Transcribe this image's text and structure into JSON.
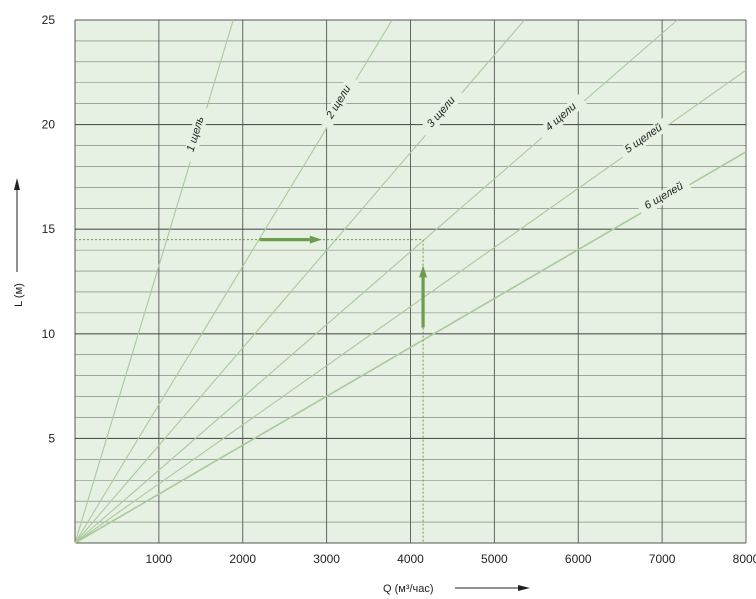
{
  "chart_data": {
    "type": "line",
    "xlabel": "Q (м³/час)",
    "ylabel": "L (м)",
    "xlim": [
      0,
      8000
    ],
    "ylim": [
      0,
      25
    ],
    "x_ticks": [
      1000,
      2000,
      3000,
      4000,
      5000,
      6000,
      7000,
      8000
    ],
    "x_tick_labels": [
      "1000",
      "2000",
      "3000",
      "4000",
      "5000",
      "6000",
      "7000",
      "8000"
    ],
    "y_ticks": [
      5,
      10,
      15,
      20,
      25
    ],
    "y_tick_labels": [
      "5",
      "10",
      "15",
      "20",
      "25"
    ],
    "grid": true,
    "series": [
      {
        "name": "1 щель",
        "x": [
          0,
          1887
        ],
        "y": [
          0,
          25
        ]
      },
      {
        "name": "2 щели",
        "x": [
          0,
          3781
        ],
        "y": [
          0,
          25
        ]
      },
      {
        "name": "3 щели",
        "x": [
          0,
          5359
        ],
        "y": [
          0,
          25
        ]
      },
      {
        "name": "4 щели",
        "x": [
          0,
          7182
        ],
        "y": [
          0,
          25
        ]
      },
      {
        "name": "5 щелей",
        "x": [
          0,
          8000
        ],
        "y": [
          0,
          22.6
        ]
      },
      {
        "name": "6 щелей",
        "x": [
          0,
          8000
        ],
        "y": [
          0,
          18.7
        ]
      }
    ],
    "annotations": {
      "example_point": {
        "x": 4150,
        "y": 14.5
      }
    }
  },
  "colors": {
    "background": "#e6f1e3",
    "line": "#a9c99c",
    "arrow": "#6c9c4e",
    "grid_major": "#555555",
    "grid_minor": "#777777"
  }
}
